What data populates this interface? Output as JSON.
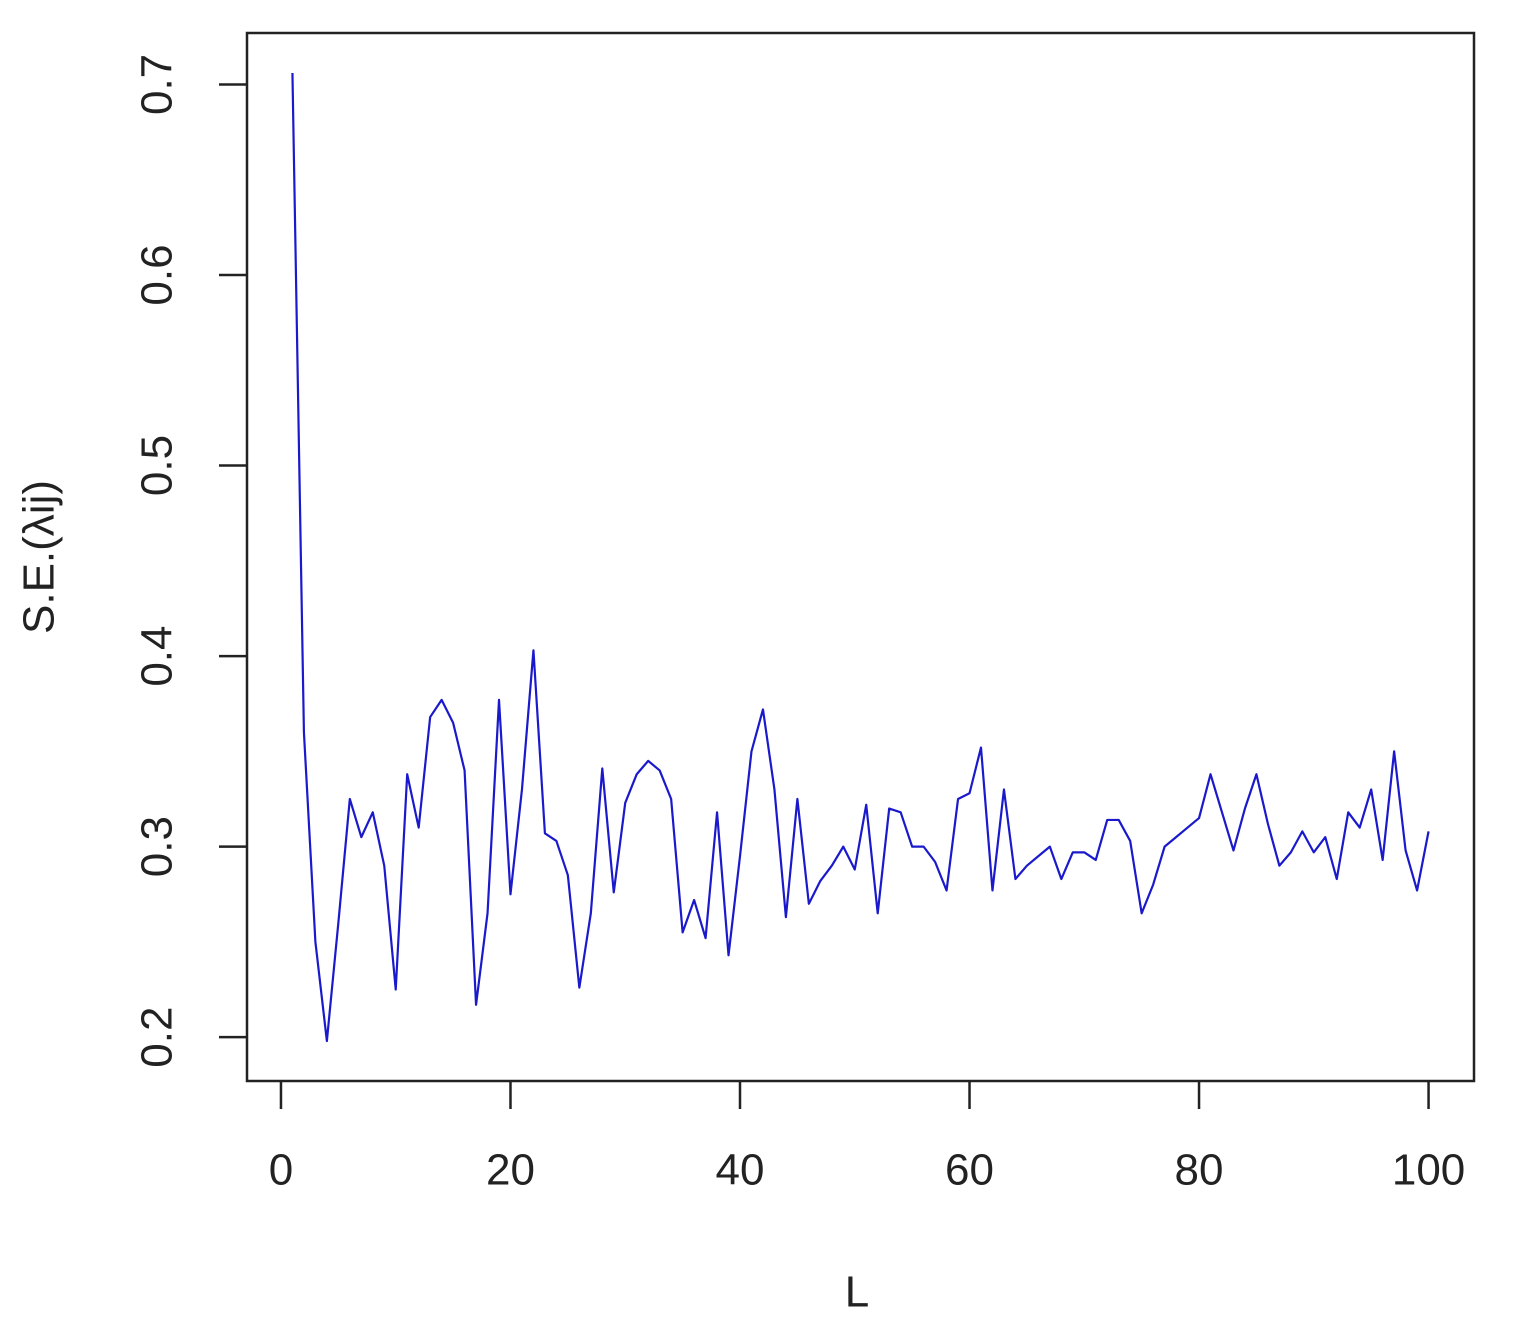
{
  "chart_data": {
    "type": "line",
    "x_label": "L",
    "y_label": "S.E.(λij)",
    "x": [
      1,
      2,
      3,
      4,
      5,
      6,
      7,
      8,
      9,
      10,
      11,
      12,
      13,
      14,
      15,
      16,
      17,
      18,
      19,
      20,
      21,
      22,
      23,
      24,
      25,
      26,
      27,
      28,
      29,
      30,
      31,
      32,
      33,
      34,
      35,
      36,
      37,
      38,
      39,
      40,
      41,
      42,
      43,
      44,
      45,
      46,
      47,
      48,
      49,
      50,
      51,
      52,
      53,
      54,
      55,
      56,
      57,
      58,
      59,
      60,
      61,
      62,
      63,
      64,
      65,
      66,
      67,
      68,
      69,
      70,
      71,
      72,
      73,
      74,
      75,
      76,
      77,
      78,
      79,
      80,
      81,
      82,
      83,
      84,
      85,
      86,
      87,
      88,
      89,
      90,
      91,
      92,
      93,
      94,
      95,
      96,
      97,
      98,
      99,
      100
    ],
    "series": [
      {
        "color": "#1a1acc",
        "values": [
          0.706,
          0.36,
          0.25,
          0.198,
          0.26,
          0.325,
          0.305,
          0.318,
          0.29,
          0.225,
          0.338,
          0.31,
          0.368,
          0.377,
          0.365,
          0.34,
          0.217,
          0.265,
          0.377,
          0.275,
          0.33,
          0.403,
          0.307,
          0.303,
          0.285,
          0.226,
          0.265,
          0.341,
          0.276,
          0.323,
          0.338,
          0.345,
          0.34,
          0.325,
          0.255,
          0.272,
          0.252,
          0.318,
          0.243,
          0.295,
          0.35,
          0.372,
          0.33,
          0.263,
          0.325,
          0.27,
          0.282,
          0.29,
          0.3,
          0.288,
          0.322,
          0.265,
          0.32,
          0.318,
          0.3,
          0.3,
          0.292,
          0.277,
          0.325,
          0.328,
          0.352,
          0.277,
          0.33,
          0.283,
          0.29,
          0.295,
          0.3,
          0.283,
          0.297,
          0.297,
          0.293,
          0.314,
          0.314,
          0.303,
          0.265,
          0.28,
          0.3,
          0.305,
          0.31,
          0.315,
          0.338,
          0.318,
          0.298,
          0.32,
          0.338,
          0.312,
          0.29,
          0.297,
          0.308,
          0.297,
          0.305,
          0.283,
          0.318,
          0.31,
          0.33,
          0.293,
          0.35,
          0.298,
          0.277,
          0.308
        ]
      }
    ],
    "xlim": [
      -2.96,
      103.96
    ],
    "ylim": [
      0.177,
      0.727
    ],
    "xticks": [
      0,
      20,
      40,
      60,
      80,
      100
    ],
    "yticks": [
      0.2,
      0.3,
      0.4,
      0.5,
      0.6,
      0.7
    ]
  }
}
